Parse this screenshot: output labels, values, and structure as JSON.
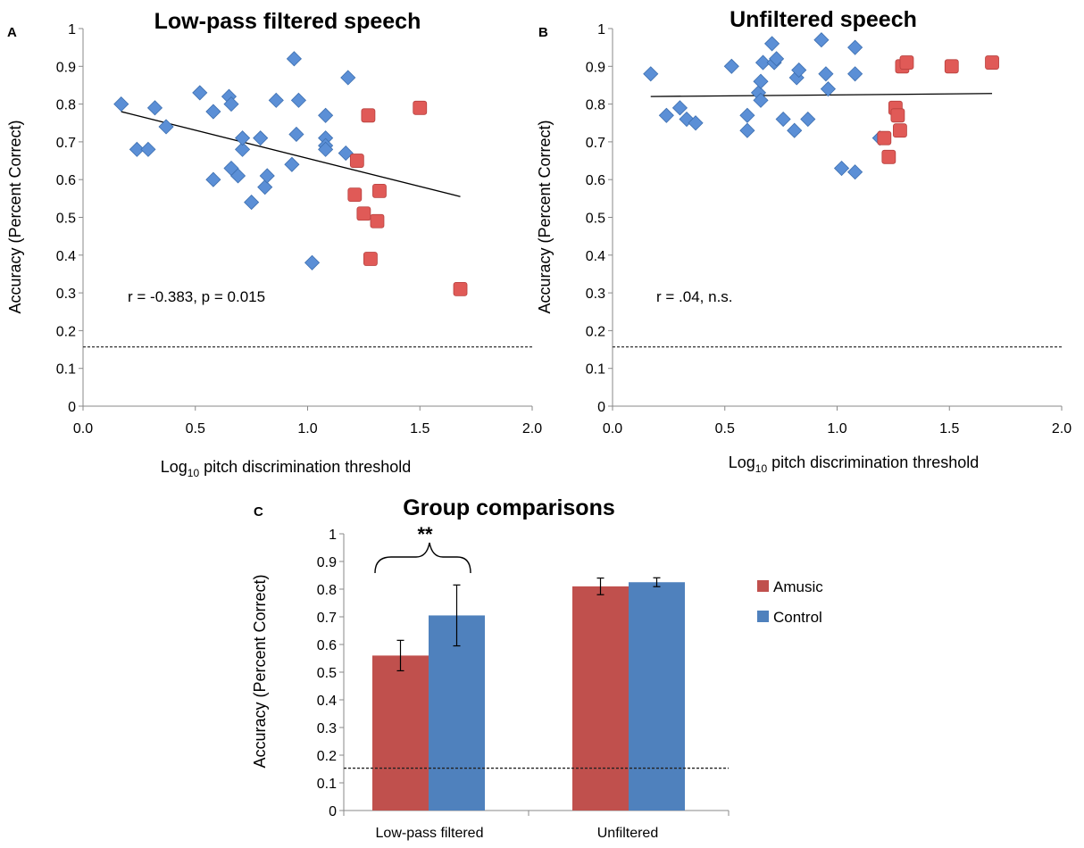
{
  "chart_data": [
    {
      "panel": "A",
      "type": "scatter",
      "title": "Low-pass filtered speech",
      "xlabel_main": "Log",
      "xlabel_sub": "10",
      "xlabel_rest": " pitch discrimination threshold",
      "ylabel": "Accuracy (Percent Correct)",
      "xlim": [
        0,
        2
      ],
      "ylim": [
        0,
        1
      ],
      "xticks": [
        "0.0",
        "0.5",
        "1.0",
        "1.5",
        "2.0"
      ],
      "yticks": [
        "0",
        "0.1",
        "0.2",
        "0.3",
        "0.4",
        "0.5",
        "0.6",
        "0.7",
        "0.8",
        "0.9",
        "1"
      ],
      "chance_line": 0.157,
      "annotation": "r = -0.383, p = 0.015",
      "series": [
        {
          "name": "Control",
          "marker": "diamond",
          "color": "#5b8fd6",
          "x": [
            0.17,
            0.24,
            0.29,
            0.32,
            0.37,
            0.52,
            0.58,
            0.58,
            0.65,
            0.66,
            0.66,
            0.69,
            0.71,
            0.71,
            0.75,
            0.79,
            0.81,
            0.82,
            0.86,
            0.93,
            0.94,
            0.95,
            0.96,
            1.02,
            1.08,
            1.08,
            1.08,
            1.08,
            1.17,
            1.18
          ],
          "y": [
            0.8,
            0.68,
            0.68,
            0.79,
            0.74,
            0.83,
            0.78,
            0.6,
            0.82,
            0.8,
            0.63,
            0.61,
            0.68,
            0.71,
            0.54,
            0.71,
            0.58,
            0.61,
            0.81,
            0.64,
            0.92,
            0.72,
            0.81,
            0.38,
            0.77,
            0.71,
            0.69,
            0.68,
            0.67,
            0.87
          ]
        },
        {
          "name": "Amusic",
          "marker": "square",
          "color": "#e05a57",
          "x": [
            1.21,
            1.22,
            1.25,
            1.27,
            1.28,
            1.31,
            1.32,
            1.5,
            1.68
          ],
          "y": [
            0.56,
            0.65,
            0.51,
            0.77,
            0.39,
            0.49,
            0.57,
            0.79,
            0.31
          ]
        }
      ],
      "fit_line": {
        "x": [
          0.17,
          1.68
        ],
        "y": [
          0.78,
          0.555
        ]
      }
    },
    {
      "panel": "B",
      "type": "scatter",
      "title": "Unfiltered speech",
      "xlabel_main": "Log",
      "xlabel_sub": "10",
      "xlabel_rest": " pitch discrimination threshold",
      "ylabel": "Accuracy (Percent Correct)",
      "xlim": [
        0,
        2
      ],
      "ylim": [
        0,
        1
      ],
      "xticks": [
        "0.0",
        "0.5",
        "1.0",
        "1.5",
        "2.0"
      ],
      "yticks": [
        "0",
        "0.1",
        "0.2",
        "0.3",
        "0.4",
        "0.5",
        "0.6",
        "0.7",
        "0.8",
        "0.9",
        "1"
      ],
      "chance_line": 0.157,
      "annotation": "r = .04, n.s.",
      "series": [
        {
          "name": "Control",
          "marker": "diamond",
          "color": "#5b8fd6",
          "x": [
            0.17,
            0.24,
            0.3,
            0.33,
            0.37,
            0.53,
            0.6,
            0.6,
            0.65,
            0.66,
            0.66,
            0.67,
            0.71,
            0.72,
            0.73,
            0.76,
            0.81,
            0.82,
            0.83,
            0.87,
            0.93,
            0.95,
            0.96,
            1.02,
            1.08,
            1.08,
            1.08,
            1.19
          ],
          "y": [
            0.88,
            0.77,
            0.79,
            0.76,
            0.75,
            0.9,
            0.77,
            0.73,
            0.83,
            0.81,
            0.86,
            0.91,
            0.96,
            0.91,
            0.92,
            0.76,
            0.73,
            0.87,
            0.89,
            0.76,
            0.97,
            0.88,
            0.84,
            0.63,
            0.95,
            0.88,
            0.62,
            0.71
          ]
        },
        {
          "name": "Amusic",
          "marker": "square",
          "color": "#e05a57",
          "x": [
            1.21,
            1.23,
            1.26,
            1.27,
            1.28,
            1.29,
            1.31,
            1.51,
            1.69
          ],
          "y": [
            0.71,
            0.66,
            0.79,
            0.77,
            0.73,
            0.9,
            0.91,
            0.9,
            0.91
          ]
        }
      ],
      "fit_line": {
        "x": [
          0.17,
          1.69
        ],
        "y": [
          0.82,
          0.828
        ]
      }
    },
    {
      "panel": "C",
      "type": "bar",
      "title": "Group comparisons",
      "ylabel": "Accuracy (Percent Correct)",
      "ylim": [
        0,
        1
      ],
      "yticks": [
        "0",
        "0.1",
        "0.2",
        "0.3",
        "0.4",
        "0.5",
        "0.6",
        "0.7",
        "0.8",
        "0.9",
        "1"
      ],
      "categories": [
        "Low-pass filtered",
        "Unfiltered"
      ],
      "series": [
        {
          "name": "Amusic",
          "color": "#c0504d",
          "values": [
            0.56,
            0.81
          ],
          "errors": [
            0.055,
            0.03
          ]
        },
        {
          "name": "Control",
          "color": "#4f81bd",
          "values": [
            0.705,
            0.825
          ],
          "errors": [
            0.11,
            0.016
          ]
        }
      ],
      "chance_line": 0.153,
      "significance": "**",
      "legend_position": "right"
    }
  ]
}
